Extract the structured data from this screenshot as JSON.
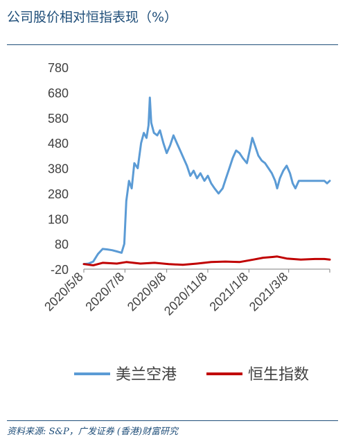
{
  "title": "公司股价相对恒指表现（%）",
  "source": "资料来源: S&P，广发证券 (香港)财富研究",
  "chart_data": {
    "type": "line",
    "title": "公司股价相对恒指表现（%）",
    "xlabel": "",
    "ylabel": "",
    "ylim": [
      -20,
      780
    ],
    "y_ticks": [
      -20,
      80,
      180,
      280,
      380,
      480,
      580,
      680,
      780
    ],
    "x_tick_labels": [
      "2020/5/8",
      "2020/7/8",
      "2020/9/8",
      "2020/11/8",
      "2021/1/8",
      "2021/3/8"
    ],
    "grid": false,
    "legend": "bottom",
    "series": [
      {
        "name": "美兰空港",
        "color": "#5b9bd5",
        "points": [
          [
            "2020-05-08",
            0
          ],
          [
            "2020-05-15",
            2
          ],
          [
            "2020-05-22",
            10
          ],
          [
            "2020-05-29",
            40
          ],
          [
            "2020-06-05",
            60
          ],
          [
            "2020-06-12",
            58
          ],
          [
            "2020-06-19",
            55
          ],
          [
            "2020-06-26",
            50
          ],
          [
            "2020-07-03",
            45
          ],
          [
            "2020-07-07",
            80
          ],
          [
            "2020-07-10",
            250
          ],
          [
            "2020-07-14",
            330
          ],
          [
            "2020-07-18",
            300
          ],
          [
            "2020-07-22",
            400
          ],
          [
            "2020-07-27",
            380
          ],
          [
            "2020-08-01",
            480
          ],
          [
            "2020-08-05",
            520
          ],
          [
            "2020-08-09",
            500
          ],
          [
            "2020-08-12",
            550
          ],
          [
            "2020-08-14",
            660
          ],
          [
            "2020-08-16",
            560
          ],
          [
            "2020-08-20",
            520
          ],
          [
            "2020-08-25",
            510
          ],
          [
            "2020-08-29",
            530
          ],
          [
            "2020-09-03",
            480
          ],
          [
            "2020-09-08",
            440
          ],
          [
            "2020-09-13",
            470
          ],
          [
            "2020-09-18",
            510
          ],
          [
            "2020-09-23",
            480
          ],
          [
            "2020-09-28",
            450
          ],
          [
            "2020-10-03",
            420
          ],
          [
            "2020-10-08",
            390
          ],
          [
            "2020-10-13",
            350
          ],
          [
            "2020-10-18",
            370
          ],
          [
            "2020-10-23",
            340
          ],
          [
            "2020-10-28",
            360
          ],
          [
            "2020-11-03",
            330
          ],
          [
            "2020-11-08",
            350
          ],
          [
            "2020-11-13",
            320
          ],
          [
            "2020-11-18",
            300
          ],
          [
            "2020-11-24",
            280
          ],
          [
            "2020-11-30",
            300
          ],
          [
            "2020-12-05",
            340
          ],
          [
            "2020-12-10",
            380
          ],
          [
            "2020-12-15",
            420
          ],
          [
            "2020-12-20",
            450
          ],
          [
            "2020-12-25",
            440
          ],
          [
            "2020-12-30",
            420
          ],
          [
            "2021-01-05",
            400
          ],
          [
            "2021-01-10",
            460
          ],
          [
            "2021-01-13",
            500
          ],
          [
            "2021-01-17",
            470
          ],
          [
            "2021-01-22",
            430
          ],
          [
            "2021-01-27",
            410
          ],
          [
            "2021-02-01",
            400
          ],
          [
            "2021-02-06",
            380
          ],
          [
            "2021-02-11",
            360
          ],
          [
            "2021-02-16",
            330
          ],
          [
            "2021-02-19",
            300
          ],
          [
            "2021-02-23",
            340
          ],
          [
            "2021-02-28",
            370
          ],
          [
            "2021-03-05",
            390
          ],
          [
            "2021-03-10",
            360
          ],
          [
            "2021-03-14",
            320
          ],
          [
            "2021-03-18",
            300
          ],
          [
            "2021-03-23",
            330
          ],
          [
            "2021-04-02",
            330
          ],
          [
            "2021-04-16",
            330
          ],
          [
            "2021-04-30",
            330
          ],
          [
            "2021-05-04",
            320
          ],
          [
            "2021-05-08",
            330
          ]
        ]
      },
      {
        "name": "恒生指数",
        "color": "#c00000",
        "points": [
          [
            "2020-05-08",
            0
          ],
          [
            "2020-05-22",
            -5
          ],
          [
            "2020-06-05",
            5
          ],
          [
            "2020-06-26",
            2
          ],
          [
            "2020-07-10",
            8
          ],
          [
            "2020-07-31",
            2
          ],
          [
            "2020-08-21",
            5
          ],
          [
            "2020-09-11",
            0
          ],
          [
            "2020-10-02",
            -3
          ],
          [
            "2020-10-23",
            2
          ],
          [
            "2020-11-13",
            8
          ],
          [
            "2020-12-04",
            10
          ],
          [
            "2020-12-25",
            8
          ],
          [
            "2021-01-15",
            18
          ],
          [
            "2021-01-29",
            25
          ],
          [
            "2021-02-12",
            28
          ],
          [
            "2021-02-19",
            30
          ],
          [
            "2021-03-05",
            22
          ],
          [
            "2021-03-26",
            18
          ],
          [
            "2021-04-16",
            20
          ],
          [
            "2021-04-30",
            20
          ],
          [
            "2021-05-08",
            18
          ]
        ]
      }
    ]
  }
}
